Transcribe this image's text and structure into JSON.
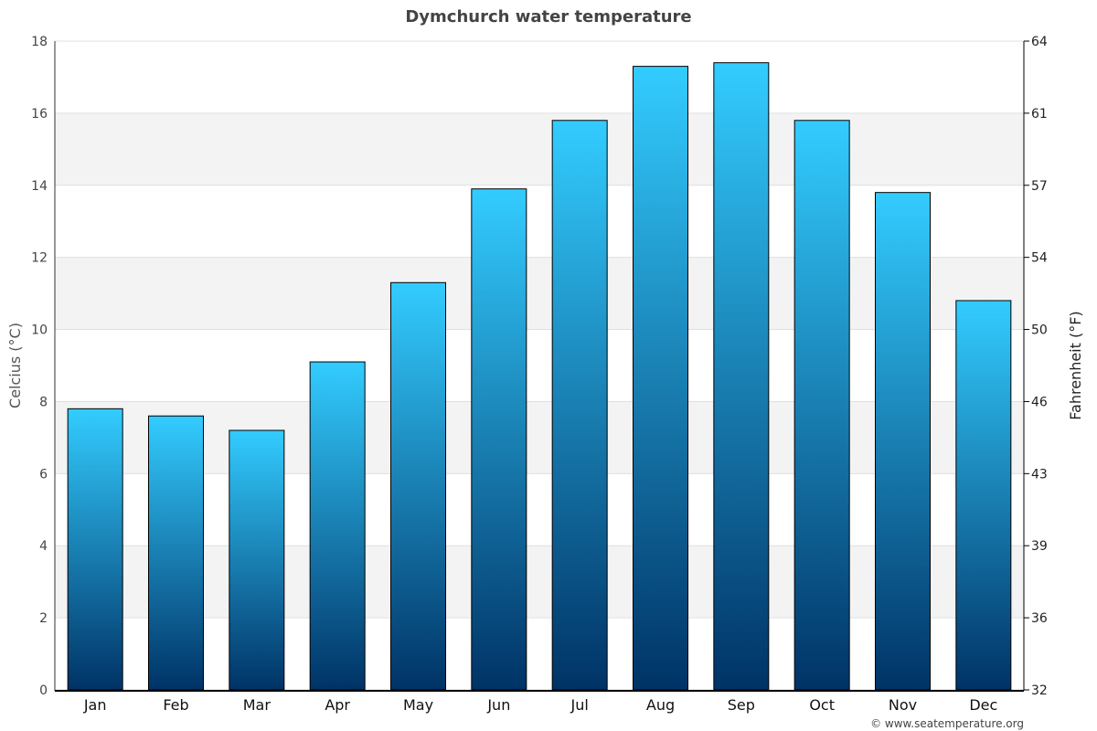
{
  "chart_data": {
    "type": "bar",
    "title": "Dymchurch water temperature",
    "categories": [
      "Jan",
      "Feb",
      "Mar",
      "Apr",
      "May",
      "Jun",
      "Jul",
      "Aug",
      "Sep",
      "Oct",
      "Nov",
      "Dec"
    ],
    "values": [
      7.8,
      7.6,
      7.2,
      9.1,
      11.3,
      13.9,
      15.8,
      17.3,
      17.4,
      15.8,
      13.8,
      10.8
    ],
    "ylabel": "Celcius (°C)",
    "ylabel_right": "Fahrenheit (°F)",
    "ylim": [
      0,
      18
    ],
    "yticks": [
      0,
      2,
      4,
      6,
      8,
      10,
      12,
      14,
      16,
      18
    ],
    "ylim_right": [
      32,
      64
    ],
    "yticks_right": [
      "32",
      "36",
      "39",
      "43",
      "46",
      "50",
      "54",
      "57",
      "61",
      "64"
    ],
    "grid": true,
    "colors": {
      "bar_top": "#33ccff",
      "bar_bottom": "#003366",
      "band": "#f3f3f3"
    }
  },
  "footer": {
    "credit": "© www.seatemperature.org"
  }
}
